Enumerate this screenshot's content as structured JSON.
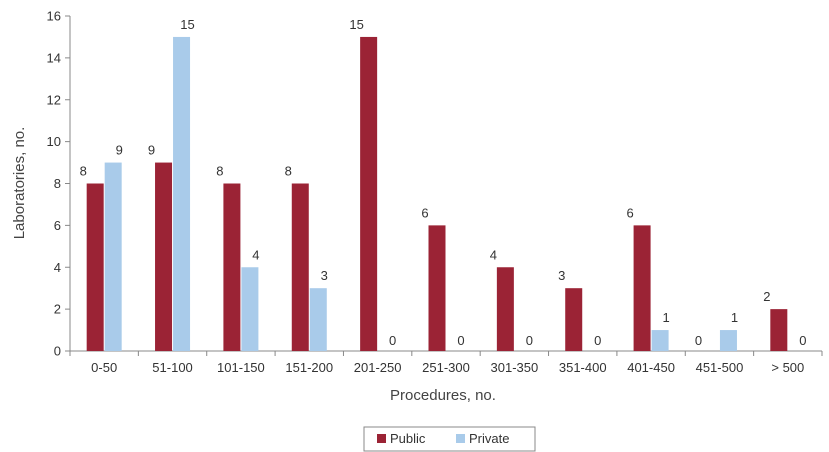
{
  "chart_data": {
    "type": "bar",
    "categories": [
      "0-50",
      "51-100",
      "101-150",
      "151-200",
      "201-250",
      "251-300",
      "301-350",
      "351-400",
      "401-450",
      "451-500",
      "> 500"
    ],
    "series": [
      {
        "name": "Public",
        "color": "#9b2335",
        "values": [
          8,
          9,
          8,
          8,
          15,
          6,
          4,
          3,
          6,
          0,
          2
        ]
      },
      {
        "name": "Private",
        "color": "#a9cbea",
        "values": [
          9,
          15,
          4,
          3,
          0,
          0,
          0,
          0,
          1,
          1,
          0
        ]
      }
    ],
    "xlabel": "Procedures, no.",
    "ylabel": "Laboratories, no.",
    "ylim": [
      0,
      16
    ],
    "yticks": [
      0,
      2,
      4,
      6,
      8,
      10,
      12,
      14,
      16
    ],
    "grid": false,
    "legend_position": "bottom-center"
  }
}
